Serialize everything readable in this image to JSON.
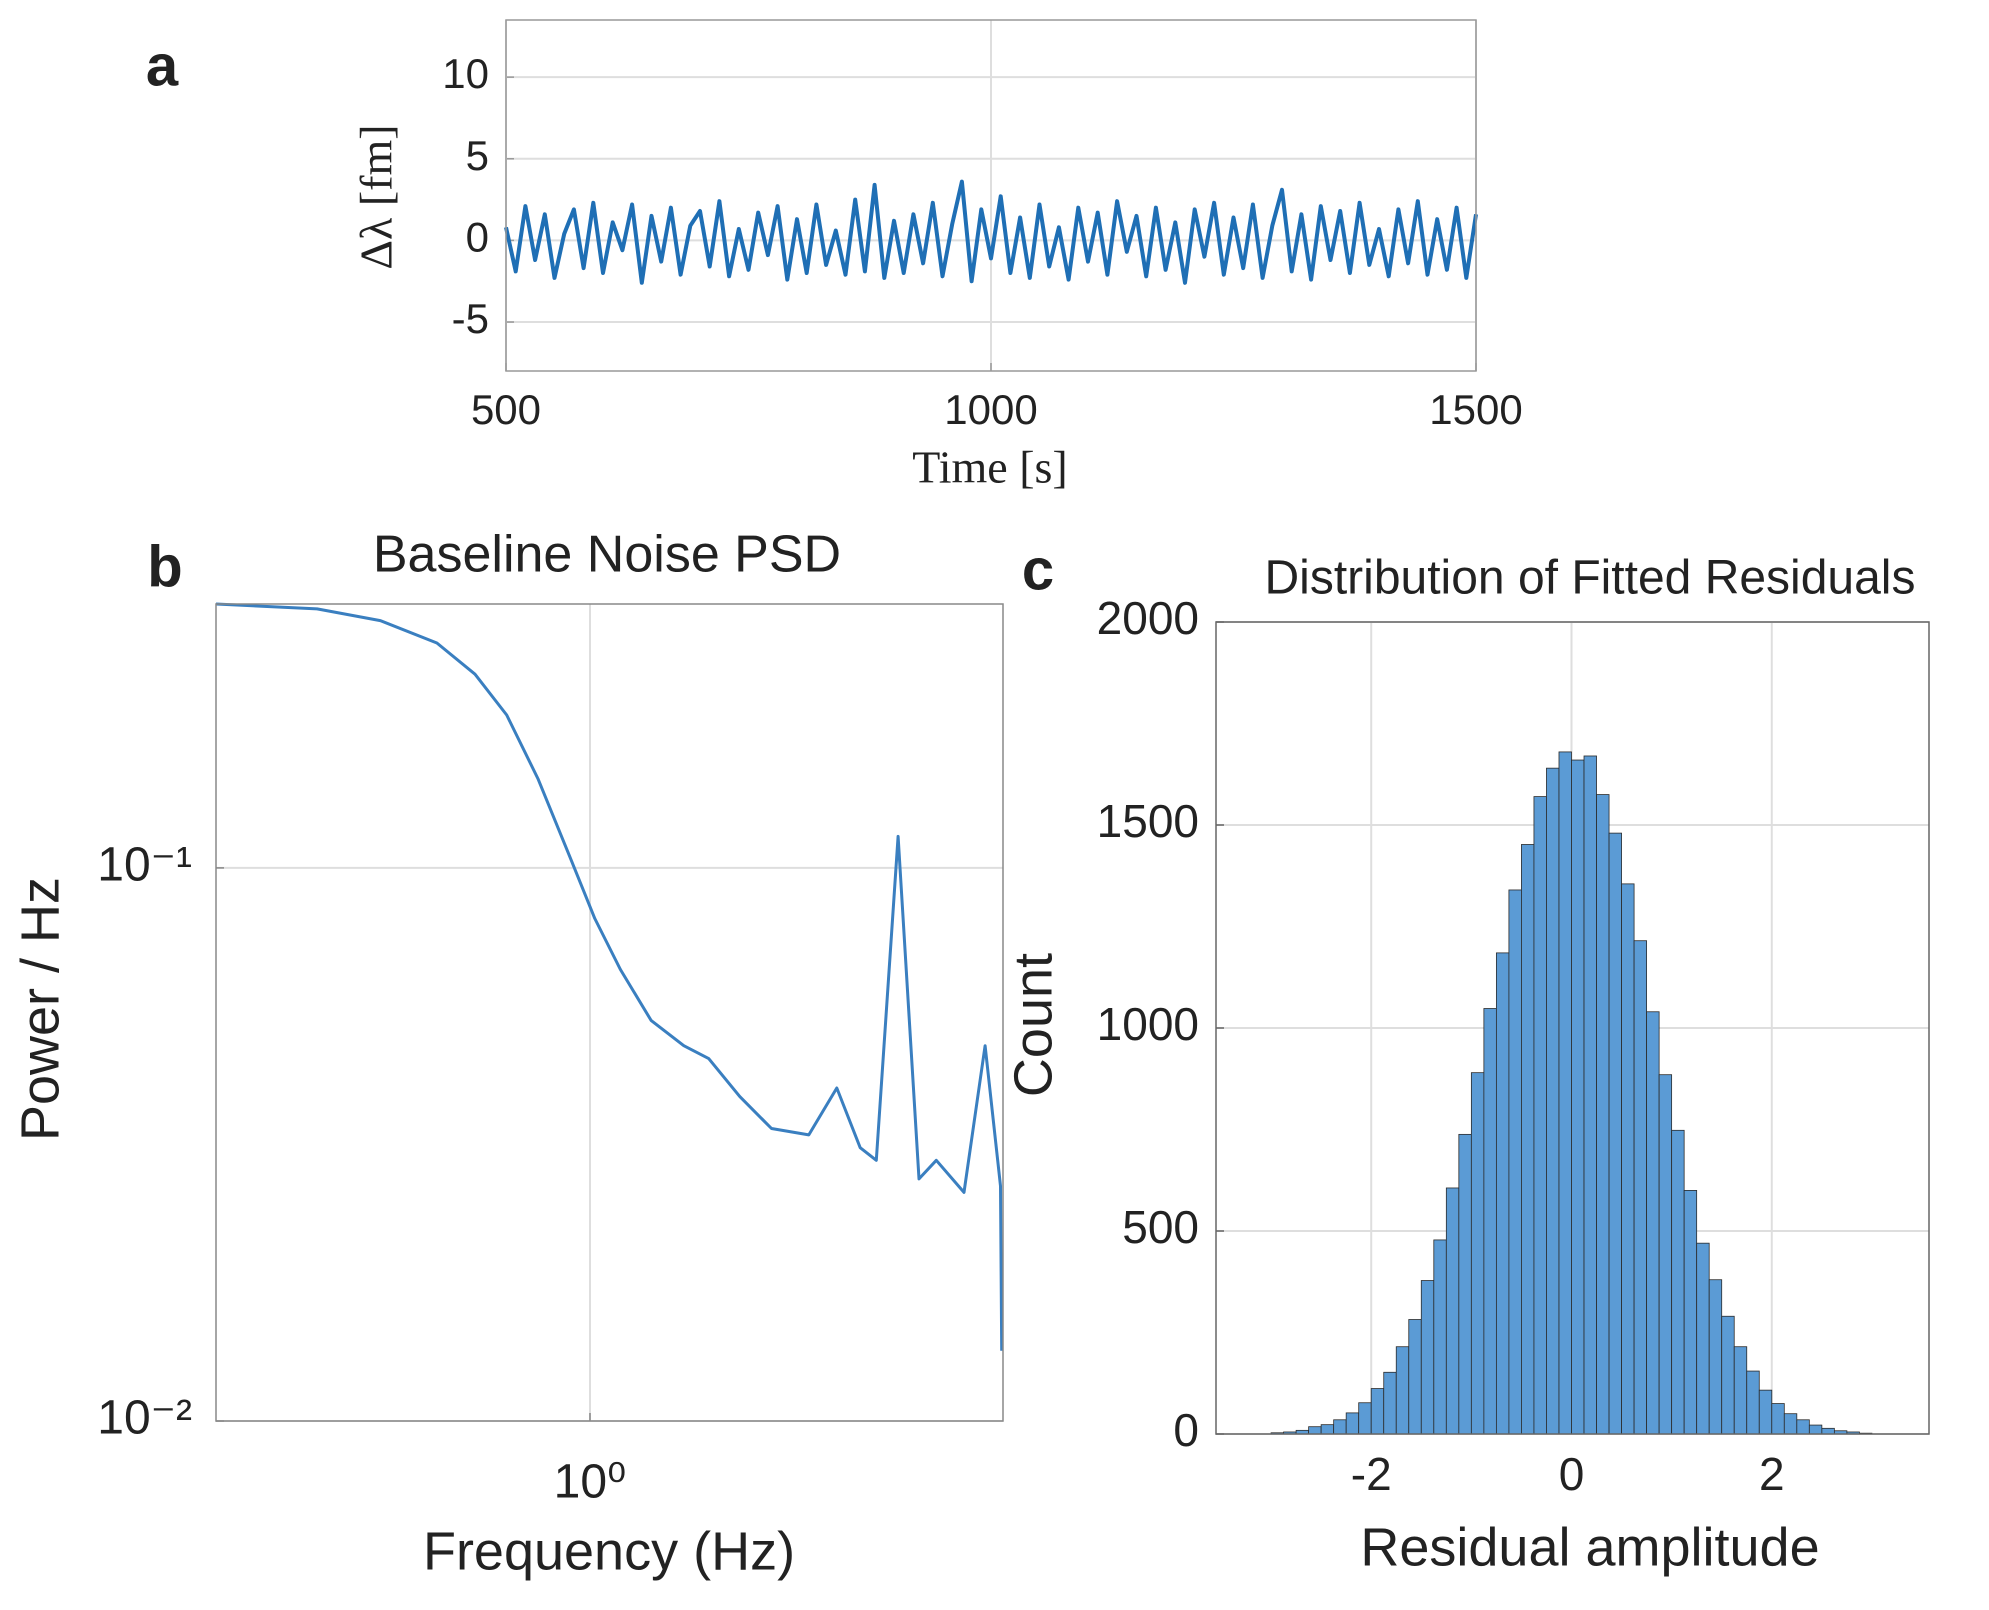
{
  "chart_data": [
    {
      "type": "line",
      "panel_label": "a",
      "xlabel": "Time [s]",
      "ylabel": "Δλ [fm]",
      "color": "#1f6fb5",
      "grid": true,
      "xlim": [
        500,
        1500
      ],
      "xticks": [
        500,
        1000,
        1500
      ],
      "ylim": [
        -8,
        13.5
      ],
      "yticks": [
        -5,
        0,
        5,
        10
      ],
      "x": [
        500,
        510,
        520,
        530,
        540,
        550,
        560,
        570,
        580,
        590,
        600,
        610,
        620,
        630,
        640,
        650,
        660,
        670,
        680,
        690,
        700,
        710,
        720,
        730,
        740,
        750,
        760,
        770,
        780,
        790,
        800,
        810,
        820,
        830,
        840,
        850,
        860,
        870,
        880,
        890,
        900,
        910,
        920,
        930,
        940,
        950,
        960,
        970,
        980,
        990,
        1000,
        1010,
        1020,
        1030,
        1040,
        1050,
        1060,
        1070,
        1080,
        1090,
        1100,
        1110,
        1120,
        1130,
        1140,
        1150,
        1160,
        1170,
        1180,
        1190,
        1200,
        1210,
        1220,
        1230,
        1240,
        1250,
        1260,
        1270,
        1280,
        1290,
        1300,
        1310,
        1320,
        1330,
        1340,
        1350,
        1360,
        1370,
        1380,
        1390,
        1400,
        1410,
        1420,
        1430,
        1440,
        1450,
        1460,
        1470,
        1480,
        1490,
        1500
      ],
      "values": [
        0.8,
        -1.9,
        2.1,
        -1.2,
        1.6,
        -2.3,
        0.4,
        1.9,
        -1.7,
        2.3,
        -2.0,
        1.1,
        -0.6,
        2.2,
        -2.6,
        1.5,
        -1.3,
        2.0,
        -2.1,
        0.9,
        1.8,
        -1.6,
        2.4,
        -2.2,
        0.7,
        -1.8,
        1.7,
        -0.9,
        2.1,
        -2.4,
        1.3,
        -2.0,
        2.2,
        -1.5,
        0.6,
        -2.1,
        2.5,
        -1.9,
        3.4,
        -2.3,
        1.2,
        -2.0,
        1.6,
        -1.4,
        2.3,
        -2.2,
        1.0,
        3.6,
        -2.5,
        1.9,
        -1.1,
        2.7,
        -2.0,
        1.4,
        -2.3,
        2.2,
        -1.6,
        0.8,
        -2.4,
        2.0,
        -1.3,
        1.7,
        -2.1,
        2.4,
        -0.7,
        1.5,
        -2.2,
        2.0,
        -1.8,
        1.1,
        -2.6,
        1.9,
        -1.0,
        2.3,
        -2.1,
        1.4,
        -1.7,
        2.2,
        -2.3,
        0.9,
        3.1,
        -1.9,
        1.6,
        -2.4,
        2.1,
        -1.2,
        1.8,
        -2.0,
        2.3,
        -1.5,
        0.7,
        -2.2,
        1.9,
        -1.4,
        2.4,
        -2.1,
        1.3,
        -1.8,
        2.0,
        -2.3,
        1.6
      ]
    },
    {
      "type": "line",
      "panel_label": "b",
      "title": "Baseline Noise PSD",
      "xlabel": "Frequency (Hz)",
      "ylabel": "Power / Hz",
      "color": "#3a7fc0",
      "grid": true,
      "xscale": "log",
      "yscale": "log",
      "xlim": [
        0.5,
        2.15
      ],
      "xticks": [
        {
          "value": 1,
          "label": "10⁰"
        }
      ],
      "ylim": [
        0.01,
        0.3
      ],
      "yticks": [
        {
          "value": 0.01,
          "label": "10⁻²"
        },
        {
          "value": 0.1,
          "label": "10⁻¹"
        }
      ],
      "x": [
        0.5,
        0.603,
        0.678,
        0.753,
        0.808,
        0.857,
        0.908,
        0.963,
        1.009,
        1.058,
        1.12,
        1.19,
        1.246,
        1.32,
        1.4,
        1.5,
        1.58,
        1.65,
        1.7,
        1.77,
        1.84,
        1.9,
        2.0,
        2.08,
        2.14,
        2.145
      ],
      "values": [
        0.3,
        0.294,
        0.28,
        0.255,
        0.224,
        0.189,
        0.145,
        0.105,
        0.081,
        0.0655,
        0.053,
        0.0477,
        0.0452,
        0.0386,
        0.0338,
        0.0329,
        0.04,
        0.0312,
        0.0296,
        0.114,
        0.0274,
        0.0296,
        0.0259,
        0.0477,
        0.0266,
        0.0134
      ]
    },
    {
      "type": "histogram",
      "panel_label": "c",
      "title": "Distribution of Fitted Residuals",
      "xlabel": "Residual amplitude",
      "ylabel": "Count",
      "color": "#5b9bd5",
      "grid": true,
      "xlim": [
        -3.55,
        3.57
      ],
      "xticks": [
        -2,
        0,
        2
      ],
      "ylim": [
        0,
        2000
      ],
      "yticks": [
        0,
        500,
        1000,
        1500,
        2000
      ],
      "bins": [
        -3,
        -2.875,
        -2.75,
        -2.625,
        -2.5,
        -2.375,
        -2.25,
        -2.125,
        -2,
        -1.875,
        -1.75,
        -1.625,
        -1.5,
        -1.375,
        -1.25,
        -1.125,
        -1,
        -0.875,
        -0.75,
        -0.625,
        -0.5,
        -0.375,
        -0.25,
        -0.125,
        0,
        0.125,
        0.25,
        0.375,
        0.5,
        0.625,
        0.75,
        0.875,
        1,
        1.125,
        1.25,
        1.375,
        1.5,
        1.625,
        1.75,
        1.875,
        2,
        2.125,
        2.25,
        2.375,
        2.5,
        2.625,
        2.75,
        2.875,
        3
      ],
      "values": [
        3,
        5,
        9,
        18,
        23,
        35,
        52,
        77,
        112,
        152,
        215,
        282,
        378,
        478,
        606,
        738,
        890,
        1048,
        1185,
        1340,
        1452,
        1570,
        1640,
        1680,
        1660,
        1670,
        1575,
        1480,
        1355,
        1215,
        1040,
        885,
        748,
        600,
        470,
        380,
        290,
        215,
        155,
        108,
        75,
        50,
        35,
        22,
        14,
        8,
        5,
        2
      ]
    }
  ]
}
